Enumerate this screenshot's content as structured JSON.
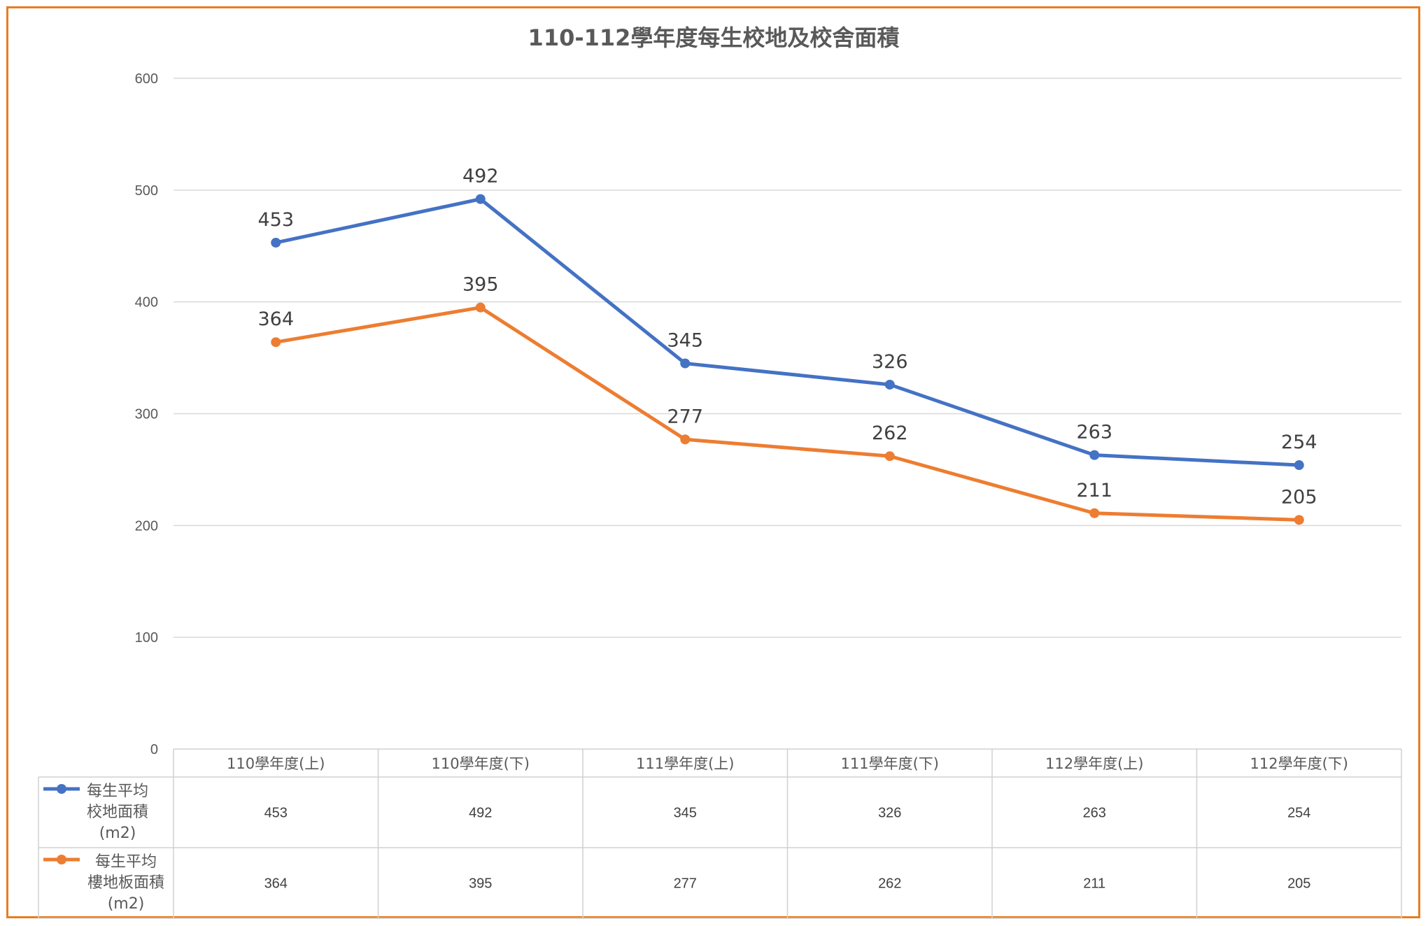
{
  "chart_data": {
    "type": "line",
    "title": "110-112學年度每生校地及校舍面積",
    "categories": [
      "110學年度(上)",
      "110學年度(下)",
      "111學年度(上)",
      "111學年度(下)",
      "112學年度(上)",
      "112學年度(下)"
    ],
    "ylim": [
      0,
      600
    ],
    "yticks": [
      0,
      100,
      200,
      300,
      400,
      500,
      600
    ],
    "grid": true,
    "data_table": true,
    "series": [
      {
        "name_lines": [
          "每生平均",
          "校地面積",
          "(m2)"
        ],
        "color": "#4472C4",
        "values": [
          453,
          492,
          345,
          326,
          263,
          254
        ]
      },
      {
        "name_lines": [
          "每生平均",
          "樓地板面積",
          "(m2)"
        ],
        "color": "#ED7D31",
        "values": [
          364,
          395,
          277,
          262,
          211,
          205
        ]
      }
    ]
  }
}
